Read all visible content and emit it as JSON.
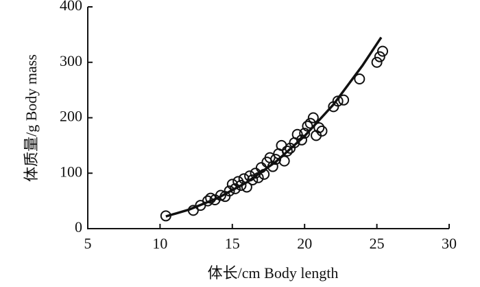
{
  "chart_data": {
    "type": "scatter",
    "xlabel": "体长/cm Body length",
    "ylabel": "体质量/g Body mass",
    "xlim": [
      5,
      30
    ],
    "xticks": [
      5,
      10,
      15,
      20,
      25,
      30
    ],
    "ylim": [
      0,
      400
    ],
    "yticks": [
      0,
      100,
      200,
      300,
      400
    ],
    "series": [
      {
        "color": "#111111",
        "x": [
          10.4,
          12.3,
          12.8,
          13.3,
          13.5,
          13.8,
          14.2,
          14.5,
          14.8,
          15.0,
          15.2,
          15.4,
          15.6,
          15.8,
          16.0,
          16.2,
          16.4,
          16.6,
          16.8,
          17.0,
          17.2,
          17.4,
          17.6,
          17.8,
          18.0,
          18.2,
          18.4,
          18.6,
          18.8,
          19.0,
          19.3,
          19.5,
          19.8,
          20.0,
          20.2,
          20.4,
          20.6,
          20.8,
          21.0,
          21.2,
          22.0,
          22.3,
          22.7,
          23.8,
          25.0,
          25.2,
          25.4
        ],
        "values": [
          23,
          33,
          42,
          50,
          55,
          52,
          60,
          58,
          68,
          80,
          72,
          85,
          78,
          90,
          75,
          95,
          88,
          100,
          92,
          110,
          98,
          120,
          128,
          112,
          125,
          135,
          150,
          122,
          140,
          145,
          155,
          170,
          160,
          172,
          185,
          190,
          200,
          168,
          182,
          176,
          220,
          230,
          232,
          270,
          300,
          310,
          320
        ]
      }
    ],
    "fit": {
      "color": "#111111",
      "x": [
        10.4,
        12,
        14,
        16,
        18,
        20,
        22,
        24,
        25.3
      ],
      "values": [
        22,
        34.3,
        55.3,
        83.6,
        120.4,
        167,
        224,
        294,
        345
      ]
    }
  }
}
